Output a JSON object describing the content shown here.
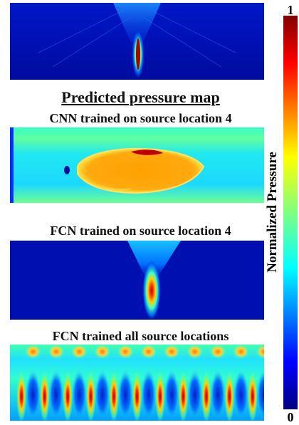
{
  "chart_data": [
    {
      "type": "heatmap",
      "title": "",
      "pattern": "focused-beam-with-side-lobes",
      "peak_value": 1.0,
      "background_value": 0.1
    },
    {
      "type": "heatmap",
      "title": "CNN trained on source location 4",
      "pattern": "broad-high-blob",
      "peak_value": 0.8,
      "background_value": 0.45
    },
    {
      "type": "heatmap",
      "title": "FCN trained on  source location 4",
      "pattern": "focused-beam",
      "peak_value": 0.95,
      "background_value": 0.1
    },
    {
      "type": "heatmap",
      "title": "FCN trained all source locations",
      "pattern": "periodic-columns",
      "peak_value": 0.95,
      "background_value": 0.3,
      "columns": 11
    }
  ],
  "section_title": "Predicted pressure map",
  "colorbar": {
    "label": "Normalized Pressure",
    "max_label": "1",
    "min_label": "0",
    "range": [
      0,
      1
    ],
    "colormap": "jet"
  }
}
